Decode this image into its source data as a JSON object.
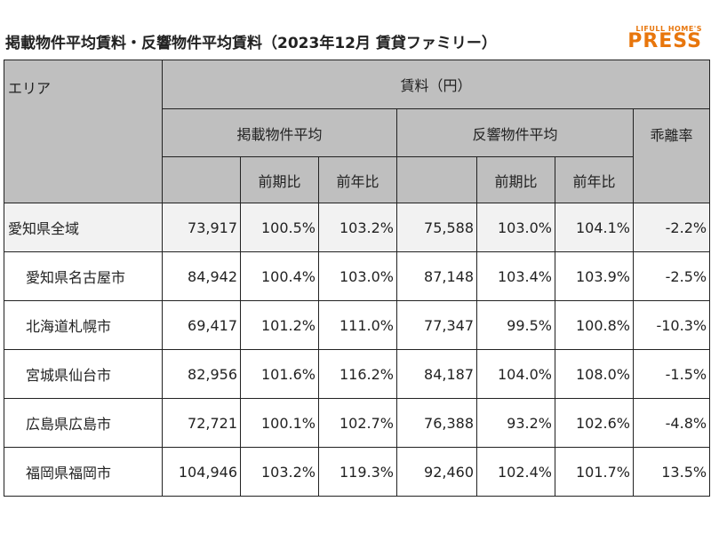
{
  "title": "掲載物件平均賃料・反響物件平均賃料（2023年12月 賃貸ファミリー）",
  "logo": {
    "small": "LIFULL HOME'S",
    "big": "PRESS"
  },
  "headers": {
    "area": "エリア",
    "rent": "賃料（円）",
    "listed_avg": "掲載物件平均",
    "response_avg": "反響物件平均",
    "gap_rate": "乖離率",
    "prev_period": "前期比",
    "prev_year": "前年比"
  },
  "rows": [
    {
      "area": "愛知県全域",
      "listed": "73,917",
      "listed_pp": "100.5%",
      "listed_py": "103.2%",
      "resp": "75,588",
      "resp_pp": "103.0%",
      "resp_py": "104.1%",
      "gap": "-2.2%"
    },
    {
      "area": "愛知県名古屋市",
      "listed": "84,942",
      "listed_pp": "100.4%",
      "listed_py": "103.0%",
      "resp": "87,148",
      "resp_pp": "103.4%",
      "resp_py": "103.9%",
      "gap": "-2.5%"
    },
    {
      "area": "北海道札幌市",
      "listed": "69,417",
      "listed_pp": "101.2%",
      "listed_py": "111.0%",
      "resp": "77,347",
      "resp_pp": "99.5%",
      "resp_py": "100.8%",
      "gap": "-10.3%"
    },
    {
      "area": "宮城県仙台市",
      "listed": "82,956",
      "listed_pp": "101.6%",
      "listed_py": "116.2%",
      "resp": "84,187",
      "resp_pp": "104.0%",
      "resp_py": "108.0%",
      "gap": "-1.5%"
    },
    {
      "area": "広島県広島市",
      "listed": "72,721",
      "listed_pp": "100.1%",
      "listed_py": "102.7%",
      "resp": "76,388",
      "resp_pp": "93.2%",
      "resp_py": "102.6%",
      "gap": "-4.8%"
    },
    {
      "area": "福岡県福岡市",
      "listed": "104,946",
      "listed_pp": "103.2%",
      "listed_py": "119.3%",
      "resp": "92,460",
      "resp_pp": "102.4%",
      "resp_py": "101.7%",
      "gap": "13.5%"
    }
  ],
  "colors": {
    "header_bg": "#bfbfbf",
    "logo": "#e8760c",
    "highlight_row": "#f2f2f2"
  }
}
